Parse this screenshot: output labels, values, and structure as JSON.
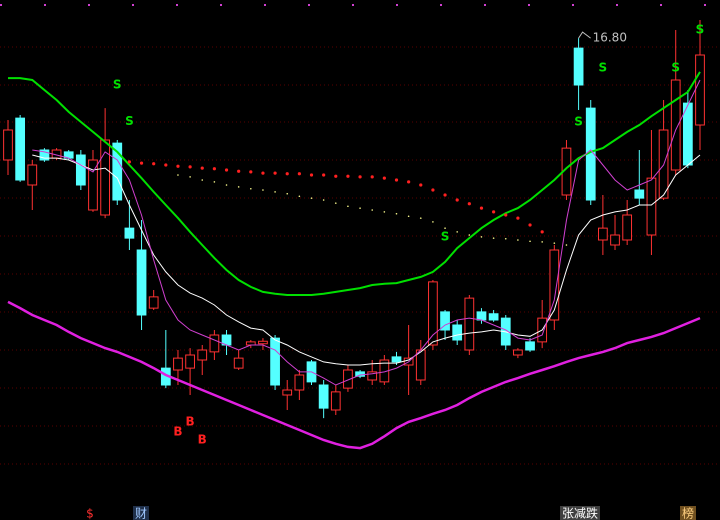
{
  "chart_data": {
    "type": "candlestick",
    "ylim": [
      9.09,
      17.41
    ],
    "up_color": "#ff3232",
    "down_color": "#54ffff",
    "open": [
      14.85,
      15.52,
      14.45,
      15.01,
      14.88,
      14.98,
      14.93,
      14.05,
      13.97,
      15.12,
      13.76,
      13.41,
      12.48,
      11.52,
      11.49,
      11.52,
      11.65,
      11.78,
      12.05,
      11.52,
      11.89,
      11.91,
      12.0,
      11.09,
      11.17,
      11.62,
      11.25,
      10.85,
      11.2,
      11.46,
      11.33,
      11.3,
      11.7,
      11.57,
      11.33,
      11.89,
      12.42,
      12.21,
      11.81,
      12.42,
      12.39,
      12.32,
      11.73,
      11.94,
      11.94,
      12.29,
      14.29,
      16.64,
      15.68,
      13.57,
      13.49,
      13.57,
      14.37,
      13.65,
      14.24,
      14.69,
      15.76,
      15.41
    ],
    "high": [
      15.49,
      15.57,
      14.85,
      15.04,
      15.04,
      15.01,
      15.01,
      15.01,
      15.68,
      15.17,
      14.21,
      13.89,
      12.77,
      12.13,
      11.81,
      11.84,
      11.89,
      12.13,
      12.13,
      11.81,
      11.97,
      12.0,
      12.05,
      11.33,
      11.49,
      11.65,
      11.33,
      11.25,
      11.57,
      11.49,
      11.65,
      11.73,
      11.78,
      12.21,
      11.97,
      12.93,
      12.45,
      12.29,
      12.69,
      12.48,
      12.45,
      12.37,
      11.84,
      12.0,
      12.61,
      13.49,
      15.17,
      16.8,
      15.81,
      14.29,
      13.97,
      14.21,
      15.01,
      15.33,
      15.81,
      16.93,
      15.97,
      17.09
    ],
    "low": [
      14.61,
      14.5,
      14.05,
      14.82,
      14.85,
      14.85,
      14.37,
      14.02,
      13.92,
      14.13,
      13.41,
      12.13,
      12.45,
      11.2,
      11.25,
      11.09,
      11.41,
      11.65,
      11.73,
      11.49,
      11.84,
      11.81,
      11.17,
      10.85,
      11.01,
      11.25,
      10.72,
      10.77,
      11.14,
      11.36,
      11.25,
      11.25,
      11.57,
      11.09,
      11.25,
      11.81,
      11.97,
      11.89,
      11.73,
      12.23,
      12.26,
      11.81,
      11.68,
      11.78,
      11.84,
      12.13,
      14.21,
      15.65,
      14.13,
      13.33,
      13.41,
      13.49,
      14.13,
      13.33,
      14.21,
      14.61,
      14.72,
      15.01
    ],
    "close": [
      15.33,
      14.53,
      14.77,
      14.85,
      15.01,
      14.88,
      14.45,
      14.85,
      15.17,
      14.21,
      13.6,
      12.37,
      12.66,
      11.25,
      11.68,
      11.73,
      11.81,
      12.05,
      11.89,
      11.68,
      11.94,
      11.95,
      11.25,
      11.17,
      11.41,
      11.3,
      10.88,
      11.14,
      11.49,
      11.39,
      11.46,
      11.65,
      11.62,
      11.68,
      11.81,
      12.9,
      12.13,
      11.97,
      12.64,
      12.29,
      12.29,
      11.89,
      11.81,
      11.81,
      12.32,
      13.41,
      15.04,
      16.05,
      14.21,
      13.76,
      13.65,
      13.97,
      14.24,
      14.56,
      15.33,
      16.13,
      14.77,
      16.53
    ],
    "series": [
      {
        "color": "#00e000",
        "style": "line",
        "width": 2,
        "values": [
          16.16,
          16.16,
          16.13,
          15.97,
          15.81,
          15.62,
          15.46,
          15.3,
          15.14,
          14.98,
          14.77,
          14.56,
          14.34,
          14.13,
          13.92,
          13.7,
          13.49,
          13.28,
          13.09,
          12.93,
          12.82,
          12.74,
          12.71,
          12.69,
          12.69,
          12.69,
          12.71,
          12.74,
          12.77,
          12.8,
          12.85,
          12.87,
          12.88,
          12.93,
          12.98,
          13.06,
          13.22,
          13.44,
          13.6,
          13.76,
          13.89,
          14.0,
          14.08,
          14.21,
          14.37,
          14.53,
          14.72,
          14.88,
          14.98,
          15.04,
          15.17,
          15.3,
          15.41,
          15.55,
          15.68,
          15.81,
          15.94,
          16.26
        ]
      },
      {
        "color": "#e020e0",
        "style": "line",
        "width": 2.5,
        "values": [
          12.58,
          12.48,
          12.37,
          12.29,
          12.21,
          12.1,
          12.0,
          11.92,
          11.84,
          11.78,
          11.7,
          11.62,
          11.52,
          11.41,
          11.33,
          11.25,
          11.17,
          11.09,
          11.01,
          10.93,
          10.85,
          10.77,
          10.69,
          10.61,
          10.53,
          10.45,
          10.37,
          10.31,
          10.26,
          10.24,
          10.31,
          10.43,
          10.56,
          10.66,
          10.72,
          10.79,
          10.85,
          10.93,
          11.04,
          11.14,
          11.22,
          11.3,
          11.36,
          11.43,
          11.49,
          11.55,
          11.62,
          11.68,
          11.73,
          11.78,
          11.84,
          11.92,
          11.97,
          12.02,
          12.08,
          12.16,
          12.24,
          12.32
        ]
      },
      {
        "color": "#ffffff",
        "style": "line",
        "width": 1,
        "values": [
          null,
          null,
          14.93,
          14.88,
          14.88,
          14.85,
          14.77,
          14.69,
          14.72,
          14.56,
          14.13,
          13.73,
          13.33,
          13.06,
          12.85,
          12.72,
          12.64,
          12.53,
          12.37,
          12.26,
          12.16,
          12.13,
          11.97,
          11.89,
          11.78,
          11.7,
          11.62,
          11.59,
          11.57,
          11.57,
          11.59,
          11.6,
          11.6,
          11.65,
          11.78,
          11.94,
          12.0,
          12.05,
          12.08,
          12.1,
          12.13,
          12.1,
          12.05,
          12.03,
          12.13,
          12.45,
          13.09,
          13.65,
          13.89,
          13.97,
          14.02,
          14.05,
          14.13,
          14.13,
          14.29,
          14.61,
          14.77,
          14.93
        ]
      },
      {
        "color": "#d040d0",
        "style": "line",
        "width": 1,
        "values": [
          null,
          null,
          15.01,
          14.98,
          14.93,
          14.88,
          14.77,
          14.66,
          14.98,
          14.85,
          14.53,
          13.97,
          13.25,
          12.61,
          12.29,
          12.13,
          12.05,
          11.97,
          11.89,
          11.81,
          11.89,
          11.89,
          11.81,
          11.62,
          11.46,
          11.46,
          11.36,
          11.25,
          11.33,
          11.41,
          11.43,
          11.46,
          11.52,
          11.62,
          11.81,
          12.05,
          12.21,
          12.29,
          12.32,
          12.29,
          12.21,
          12.13,
          12.0,
          11.97,
          12.05,
          12.61,
          13.89,
          14.85,
          15.01,
          14.77,
          14.53,
          14.37,
          14.45,
          14.53,
          14.77,
          15.33,
          15.73,
          16.13
        ]
      },
      {
        "color": "#ff2020",
        "style": "dots",
        "width": 3.2,
        "values": [
          null,
          null,
          null,
          null,
          null,
          null,
          null,
          null,
          null,
          null,
          14.82,
          14.8,
          14.79,
          14.77,
          14.75,
          14.74,
          14.72,
          14.71,
          14.69,
          14.67,
          14.66,
          14.64,
          14.64,
          14.63,
          14.63,
          14.61,
          14.61,
          14.59,
          14.59,
          14.58,
          14.58,
          14.56,
          14.53,
          14.5,
          14.45,
          14.37,
          14.29,
          14.21,
          14.15,
          14.08,
          14.02,
          13.97,
          13.92,
          13.81,
          13.7,
          null,
          null,
          null,
          null,
          null,
          null,
          null,
          null,
          null,
          null,
          null,
          null,
          null
        ]
      },
      {
        "color": "#ffff90",
        "style": "dots",
        "width": 1.6,
        "values": [
          null,
          null,
          null,
          null,
          null,
          null,
          null,
          null,
          null,
          null,
          null,
          null,
          null,
          null,
          14.61,
          14.58,
          14.53,
          14.5,
          14.45,
          14.42,
          14.39,
          14.37,
          14.34,
          14.31,
          14.27,
          14.24,
          14.21,
          14.16,
          14.11,
          14.08,
          14.05,
          14.02,
          13.99,
          13.95,
          13.92,
          13.86,
          13.76,
          13.7,
          13.65,
          13.62,
          13.6,
          13.59,
          13.57,
          13.55,
          13.54,
          13.52,
          13.49,
          null,
          null,
          null,
          null,
          null,
          null,
          null,
          null,
          null,
          null,
          null
        ]
      }
    ],
    "signals": [
      {
        "label": "S",
        "index": 9,
        "value": 16.05,
        "color": "#00e000"
      },
      {
        "label": "S",
        "index": 10,
        "value": 15.47,
        "color": "#00e000"
      },
      {
        "label": "S",
        "index": 36,
        "value": 13.62,
        "color": "#00e000"
      },
      {
        "label": "S",
        "index": 47,
        "value": 15.46,
        "color": "#00e000"
      },
      {
        "label": "S",
        "index": 49,
        "value": 16.32,
        "color": "#00e000"
      },
      {
        "label": "S",
        "index": 55,
        "value": 16.32,
        "color": "#00e000"
      },
      {
        "label": "S",
        "index": 57,
        "value": 16.93,
        "color": "#00e000"
      },
      {
        "label": "B",
        "index": 14,
        "value": 10.5,
        "color": "#ff2020"
      },
      {
        "label": "B",
        "index": 15,
        "value": 10.66,
        "color": "#ff2020"
      },
      {
        "label": "B",
        "index": 16,
        "value": 10.37,
        "color": "#ff2020"
      }
    ],
    "peak_label": {
      "label": "16.80",
      "value": 16.8,
      "index": 47
    }
  },
  "footer": [
    "$",
    "财",
    "张减跌",
    "榜"
  ]
}
